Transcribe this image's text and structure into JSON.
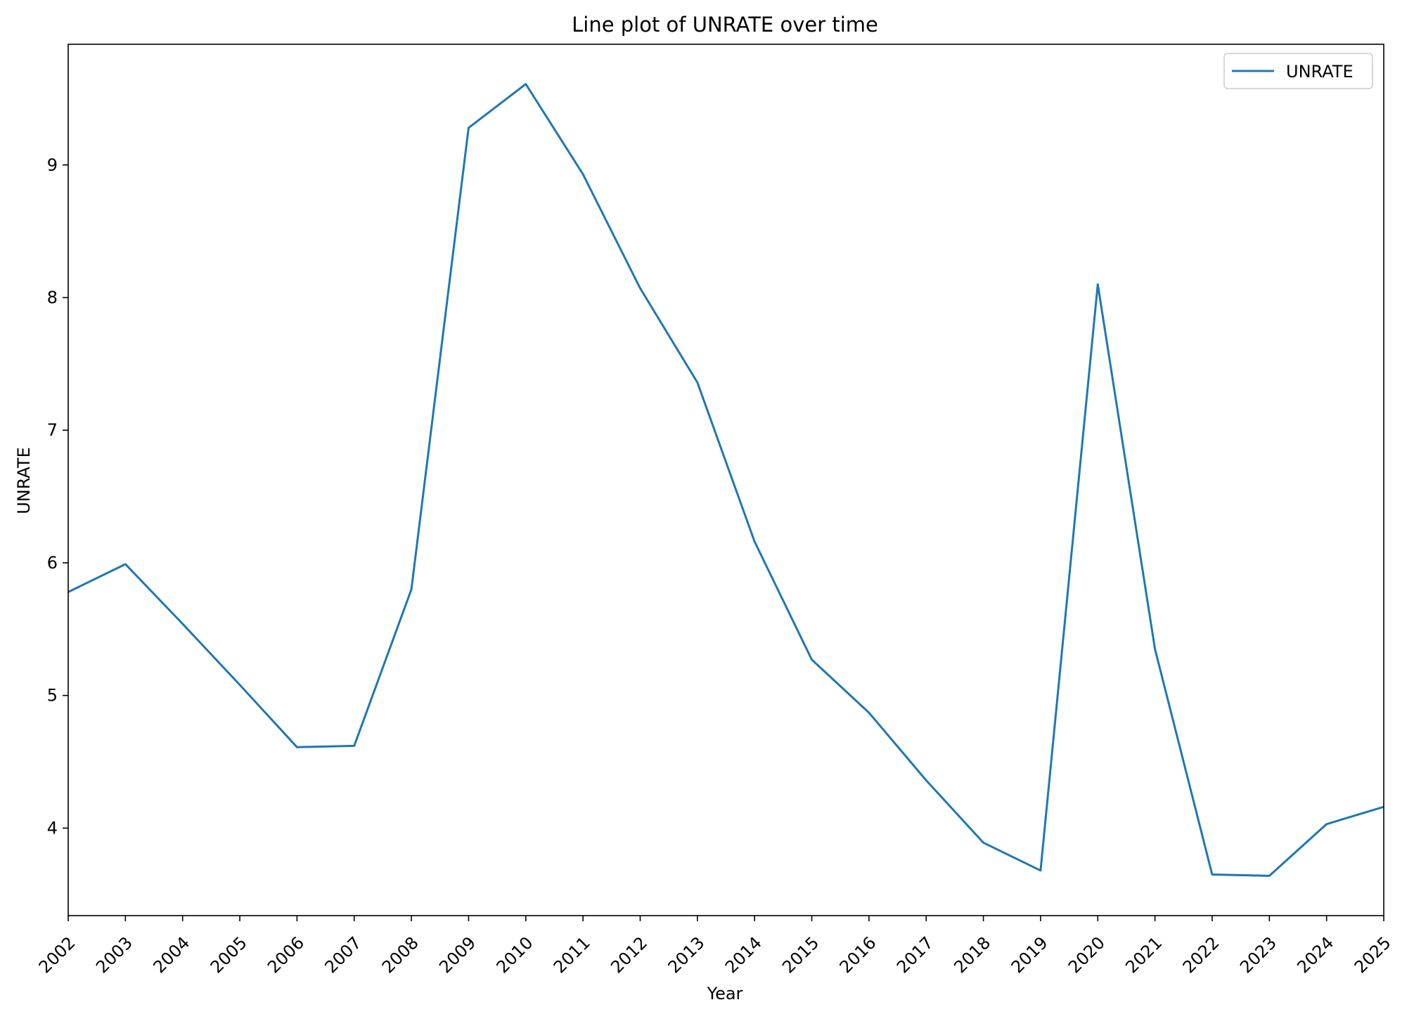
{
  "chart_data": {
    "type": "line",
    "title": "Line plot of UNRATE over time",
    "xlabel": "Year",
    "ylabel": "UNRATE",
    "x": [
      "2002",
      "2003",
      "2004",
      "2005",
      "2006",
      "2007",
      "2008",
      "2009",
      "2010",
      "2011",
      "2012",
      "2013",
      "2014",
      "2015",
      "2016",
      "2017",
      "2018",
      "2019",
      "2020",
      "2021",
      "2022",
      "2023",
      "2024",
      "2025"
    ],
    "series": [
      {
        "name": "UNRATE",
        "color": "#1f77b4",
        "values": [
          5.78,
          5.99,
          5.54,
          5.08,
          4.61,
          4.62,
          5.8,
          9.28,
          9.61,
          8.93,
          8.07,
          7.36,
          6.16,
          5.27,
          4.87,
          4.36,
          3.89,
          3.68,
          8.1,
          5.35,
          3.65,
          3.64,
          4.03,
          4.16
        ]
      }
    ],
    "xlim": [
      "2002",
      "2025"
    ],
    "ylim": [
      3.34,
      9.91
    ],
    "yticks": [
      "4",
      "5",
      "6",
      "7",
      "8",
      "9"
    ],
    "grid": false,
    "legend": {
      "position": "top-right",
      "entries": [
        "UNRATE"
      ]
    }
  }
}
